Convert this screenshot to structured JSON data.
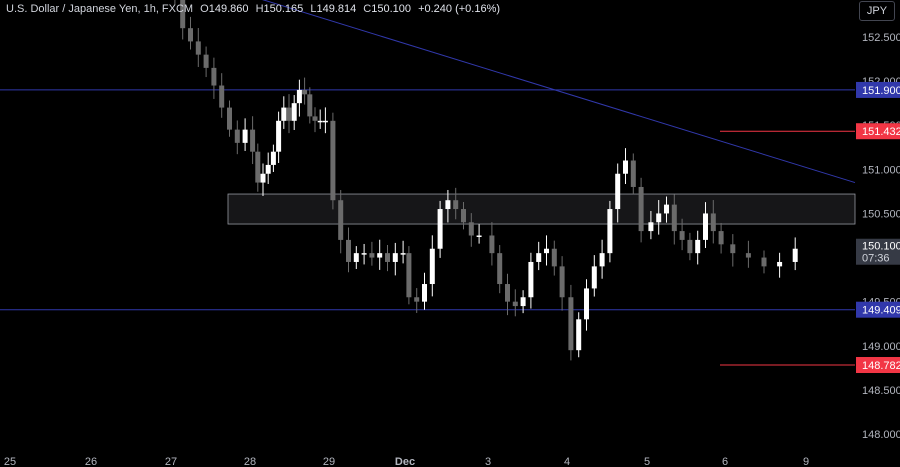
{
  "header": {
    "symbol": "U.S. Dollar / Japanese Yen, 1h, FXCM",
    "open_label": "O",
    "open_value": "149.860",
    "high_label": "H",
    "high_value": "150.165",
    "low_label": "L",
    "low_value": "149.814",
    "close_label": "C",
    "close_value": "150.100",
    "change": "+0.240 (+0.16%)"
  },
  "currency_button": "JPY",
  "chart_data": {
    "type": "candlestick",
    "ylim": [
      147.85,
      153.05
    ],
    "y_ticks": [
      "148.000",
      "148.500",
      "149.000",
      "149.500",
      "150.000",
      "150.500",
      "151.000",
      "151.500",
      "152.000",
      "152.500"
    ],
    "x_ticks": [
      "25",
      "26",
      "27",
      "28",
      "29",
      "Dec",
      "3",
      "4",
      "5",
      "6",
      "9"
    ],
    "last_price_label": "150.100",
    "countdown_label": "07:36",
    "horizontal_levels": [
      {
        "value": 151.9,
        "label": "151.900",
        "color": "#3138ab",
        "style": "full"
      },
      {
        "value": 149.409,
        "label": "149.409",
        "color": "#3138ab",
        "style": "full"
      },
      {
        "value": 151.432,
        "label": "151.432",
        "color": "#f23645",
        "style": "short"
      },
      {
        "value": 148.782,
        "label": "148.782",
        "color": "#f23645",
        "style": "short"
      }
    ],
    "zone": {
      "top": 150.72,
      "bottom": 150.38
    },
    "trendline": {
      "from": [
        "27",
        153.0
      ],
      "to": [
        "6",
        150.85
      ]
    },
    "close_path": [
      [
        "27",
        152.95
      ],
      [
        "27",
        152.6
      ],
      [
        "27",
        152.45
      ],
      [
        "27",
        152.3
      ],
      [
        "27",
        152.15
      ],
      [
        "27",
        151.95
      ],
      [
        "27",
        151.7
      ],
      [
        "27",
        151.45
      ],
      [
        "27",
        151.3
      ],
      [
        "27",
        151.45
      ],
      [
        "28",
        151.2
      ],
      [
        "28",
        150.85
      ],
      [
        "28",
        150.95
      ],
      [
        "28",
        151.05
      ],
      [
        "28",
        151.2
      ],
      [
        "28",
        151.55
      ],
      [
        "28",
        151.7
      ],
      [
        "28",
        151.55
      ],
      [
        "28",
        151.75
      ],
      [
        "28",
        151.9
      ],
      [
        "28",
        151.85
      ],
      [
        "28",
        151.6
      ],
      [
        "28",
        151.55
      ],
      [
        "28",
        151.55
      ],
      [
        "28",
        151.55
      ],
      [
        "29",
        150.65
      ],
      [
        "29",
        150.2
      ],
      [
        "29",
        149.95
      ],
      [
        "29",
        150.05
      ],
      [
        "29",
        150.05
      ],
      [
        "29",
        150.0
      ],
      [
        "29",
        150.05
      ],
      [
        "29",
        149.95
      ],
      [
        "29",
        150.05
      ],
      [
        "29",
        150.05
      ],
      [
        "Dec",
        149.55
      ],
      [
        "Dec",
        149.5
      ],
      [
        "Dec",
        149.7
      ],
      [
        "Dec",
        150.1
      ],
      [
        "Dec",
        150.55
      ],
      [
        "Dec",
        150.65
      ],
      [
        "Dec",
        150.55
      ],
      [
        "Dec",
        150.4
      ],
      [
        "Dec",
        150.25
      ],
      [
        "Dec",
        150.25
      ],
      [
        "3",
        150.05
      ],
      [
        "3",
        149.7
      ],
      [
        "3",
        149.5
      ],
      [
        "3",
        149.45
      ],
      [
        "3",
        149.55
      ],
      [
        "3",
        149.95
      ],
      [
        "3",
        150.05
      ],
      [
        "3",
        150.1
      ],
      [
        "3",
        149.9
      ],
      [
        "3",
        149.55
      ],
      [
        "4",
        148.95
      ],
      [
        "4",
        149.3
      ],
      [
        "4",
        149.65
      ],
      [
        "4",
        149.9
      ],
      [
        "4",
        150.05
      ],
      [
        "4",
        150.55
      ],
      [
        "4",
        150.95
      ],
      [
        "4",
        151.1
      ],
      [
        "4",
        150.8
      ],
      [
        "4",
        150.3
      ],
      [
        "5",
        150.4
      ],
      [
        "5",
        150.5
      ],
      [
        "5",
        150.6
      ],
      [
        "5",
        150.3
      ],
      [
        "5",
        150.2
      ],
      [
        "5",
        150.05
      ],
      [
        "5",
        150.2
      ],
      [
        "5",
        150.5
      ],
      [
        "5",
        150.3
      ],
      [
        "5",
        150.15
      ],
      [
        "6",
        150.05
      ],
      [
        "6",
        150.0
      ],
      [
        "6",
        149.9
      ],
      [
        "6",
        149.95
      ],
      [
        "6",
        150.1
      ]
    ]
  },
  "colors": {
    "background": "#000000",
    "candle_up": "#ffffff",
    "candle_down": "#6b6b6b",
    "level_blue": "#3138ab",
    "level_red": "#f23645",
    "trendline": "#3138ab",
    "axis_text": "#b2b5be",
    "last_price_bg": "#363a45"
  }
}
